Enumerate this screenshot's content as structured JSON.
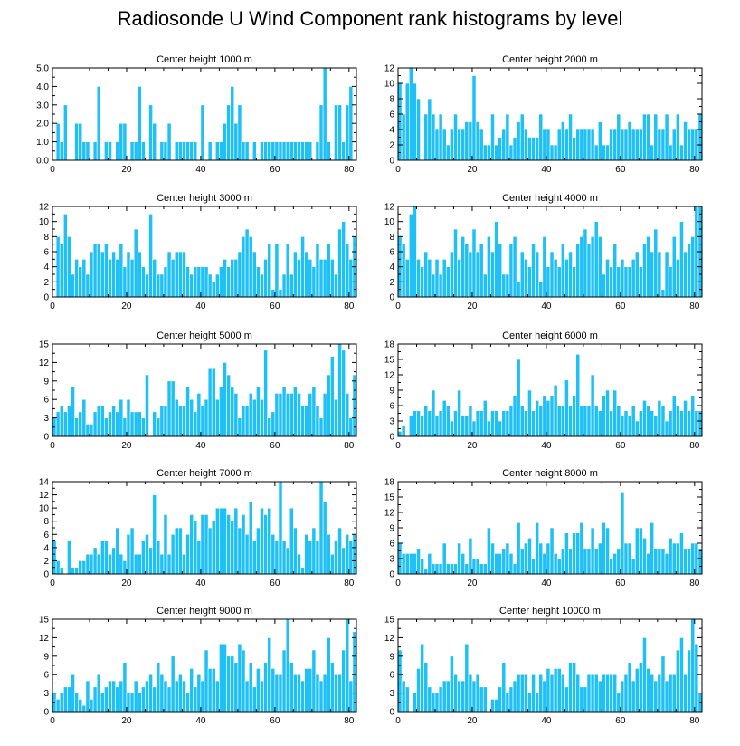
{
  "figure": {
    "title": "Radiosonde U Wind Component rank histograms by level",
    "bar_color": "#1ec0f5"
  },
  "chart_data": [
    {
      "type": "bar",
      "title": "Center height 1000 m",
      "xlim": [
        0,
        82
      ],
      "ylim": [
        0,
        5
      ],
      "yticks": [
        "0.0",
        "1.0",
        "2.0",
        "3.0",
        "4.0",
        "5.0"
      ],
      "xticks": [
        0,
        20,
        40,
        60,
        80
      ],
      "values": [
        0,
        2,
        1,
        3,
        0,
        0,
        2,
        2,
        1,
        1,
        0,
        1,
        4,
        0,
        1,
        1,
        0,
        1,
        2,
        2,
        0,
        1,
        1,
        4,
        1,
        0,
        3,
        2,
        0,
        1,
        1,
        2,
        0,
        1,
        1,
        1,
        1,
        1,
        1,
        0,
        3,
        0,
        1,
        0,
        1,
        1,
        2,
        3,
        4,
        2,
        3,
        1,
        1,
        0,
        1,
        0,
        1,
        1,
        1,
        1,
        1,
        1,
        1,
        1,
        1,
        1,
        1,
        1,
        1,
        1,
        0,
        1,
        3,
        5,
        1,
        0,
        3,
        3,
        1,
        3,
        4,
        0
      ]
    },
    {
      "type": "bar",
      "title": "Center height 2000 m",
      "xlim": [
        0,
        82
      ],
      "ylim": [
        0,
        12
      ],
      "yticks": [
        "0",
        "2",
        "4",
        "6",
        "8",
        "10",
        "12"
      ],
      "xticks": [
        0,
        20,
        40,
        60,
        80
      ],
      "values": [
        10,
        6,
        10,
        12,
        10,
        8,
        0,
        6,
        8,
        6,
        4,
        6,
        4,
        2,
        4,
        6,
        4,
        4,
        5,
        5,
        11,
        5,
        4,
        2,
        2,
        6,
        2,
        3,
        4,
        6,
        2,
        3,
        5,
        6,
        4,
        3,
        3,
        3,
        6,
        4,
        4,
        2,
        2,
        4,
        5,
        4,
        6,
        3,
        4,
        4,
        4,
        4,
        4,
        2,
        5,
        2,
        2,
        4,
        4,
        6,
        4,
        4,
        5,
        4,
        4,
        4,
        6,
        6,
        2,
        6,
        4,
        4,
        6,
        2,
        4,
        6,
        2,
        5,
        4,
        4,
        4,
        6
      ]
    },
    {
      "type": "bar",
      "title": "Center height 3000 m",
      "xlim": [
        0,
        82
      ],
      "ylim": [
        0,
        12
      ],
      "yticks": [
        "0",
        "2",
        "4",
        "6",
        "8",
        "10",
        "12"
      ],
      "xticks": [
        0,
        20,
        40,
        60,
        80
      ],
      "values": [
        0,
        8,
        7,
        11,
        8,
        3,
        5,
        4,
        5,
        3,
        6,
        7,
        7,
        6,
        7,
        5,
        6,
        5,
        7,
        4,
        6,
        5,
        9,
        6,
        4,
        3,
        11,
        5,
        3,
        3,
        4,
        6,
        5,
        6,
        6,
        6,
        4,
        3,
        4,
        4,
        4,
        4,
        3,
        2,
        3,
        4,
        5,
        4,
        5,
        5,
        6,
        8,
        9,
        8,
        6,
        4,
        3,
        5,
        7,
        1,
        7,
        1,
        3,
        7,
        3,
        6,
        5,
        8,
        6,
        5,
        4,
        7,
        5,
        5,
        7,
        5,
        3,
        9,
        10,
        7,
        5,
        8
      ]
    },
    {
      "type": "bar",
      "title": "Center height 4000 m",
      "xlim": [
        0,
        82
      ],
      "ylim": [
        0,
        12
      ],
      "yticks": [
        "0",
        "2",
        "4",
        "6",
        "8",
        "10",
        "12"
      ],
      "xticks": [
        0,
        20,
        40,
        60,
        80
      ],
      "values": [
        8,
        7,
        5,
        11,
        12,
        5,
        4,
        6,
        5,
        3,
        5,
        3,
        5,
        4,
        6,
        9,
        5,
        8,
        7,
        6,
        9,
        6,
        7,
        3,
        8,
        6,
        10,
        7,
        3,
        3,
        7,
        8,
        2,
        6,
        5,
        4,
        7,
        6,
        2,
        8,
        4,
        6,
        5,
        4,
        7,
        5,
        6,
        4,
        7,
        8,
        9,
        7,
        8,
        10,
        8,
        3,
        5,
        4,
        7,
        4,
        5,
        4,
        4,
        5,
        6,
        4,
        7,
        8,
        6,
        9,
        6,
        1,
        6,
        4,
        8,
        5,
        10,
        6,
        7,
        8,
        12,
        12
      ]
    },
    {
      "type": "bar",
      "title": "Center height 5000 m",
      "xlim": [
        0,
        82
      ],
      "ylim": [
        0,
        15
      ],
      "yticks": [
        "0",
        "3",
        "6",
        "9",
        "12",
        "15"
      ],
      "xticks": [
        0,
        20,
        40,
        60,
        80
      ],
      "values": [
        3,
        4,
        5,
        4,
        5,
        8,
        3,
        4,
        6,
        2,
        2,
        4,
        5,
        5,
        3,
        4,
        5,
        4,
        6,
        3,
        6,
        4,
        4,
        4,
        3,
        10,
        0,
        4,
        3,
        5,
        5,
        9,
        9,
        6,
        5,
        5,
        8,
        6,
        4,
        7,
        5,
        6,
        11,
        11,
        6,
        8,
        12,
        10,
        8,
        7,
        3,
        5,
        5,
        7,
        6,
        8,
        6,
        14,
        3,
        4,
        7,
        7,
        8,
        7,
        7,
        8,
        7,
        5,
        5,
        7,
        8,
        5,
        3,
        7,
        10,
        13,
        6,
        15,
        14,
        7,
        3,
        10
      ]
    },
    {
      "type": "bar",
      "title": "Center height 6000 m",
      "xlim": [
        0,
        82
      ],
      "ylim": [
        0,
        18
      ],
      "yticks": [
        "0",
        "3",
        "6",
        "9",
        "12",
        "15",
        "18"
      ],
      "xticks": [
        0,
        20,
        40,
        60,
        80
      ],
      "values": [
        1,
        2,
        0,
        4,
        5,
        5,
        4,
        6,
        5,
        9,
        4,
        5,
        7,
        6,
        3,
        5,
        9,
        4,
        4,
        6,
        3,
        5,
        5,
        7,
        3,
        5,
        5,
        3,
        5,
        5,
        6,
        8,
        15,
        6,
        5,
        9,
        5,
        7,
        6,
        8,
        7,
        8,
        10,
        6,
        6,
        11,
        6,
        8,
        16,
        6,
        6,
        6,
        12,
        6,
        5,
        8,
        9,
        5,
        9,
        6,
        4,
        5,
        4,
        6,
        3,
        5,
        7,
        6,
        5,
        4,
        7,
        6,
        3,
        5,
        8,
        6,
        5,
        7,
        5,
        8,
        5,
        5
      ]
    },
    {
      "type": "bar",
      "title": "Center height 7000 m",
      "xlim": [
        0,
        82
      ],
      "ylim": [
        0,
        14
      ],
      "yticks": [
        "0",
        "2",
        "4",
        "6",
        "8",
        "10",
        "12",
        "14"
      ],
      "xticks": [
        0,
        20,
        40,
        60,
        80
      ],
      "values": [
        5,
        2,
        1,
        0,
        5,
        1,
        1,
        2,
        2,
        3,
        3,
        4,
        3,
        5,
        5,
        3,
        4,
        7,
        3,
        2,
        6,
        7,
        3,
        3,
        5,
        6,
        4,
        12,
        5,
        3,
        9,
        3,
        6,
        7,
        7,
        3,
        6,
        9,
        8,
        5,
        9,
        9,
        7,
        8,
        10,
        10,
        10,
        9,
        8,
        10,
        7,
        9,
        6,
        11,
        5,
        7,
        10,
        9,
        10,
        6,
        5,
        14,
        5,
        4,
        10,
        7,
        3,
        1,
        6,
        5,
        7,
        5,
        14,
        11,
        6,
        3,
        5,
        7,
        4,
        6,
        5,
        6
      ]
    },
    {
      "type": "bar",
      "title": "Center height 8000 m",
      "xlim": [
        0,
        82
      ],
      "ylim": [
        0,
        18
      ],
      "yticks": [
        "0",
        "3",
        "6",
        "9",
        "12",
        "15",
        "18"
      ],
      "xticks": [
        0,
        20,
        40,
        60,
        80
      ],
      "values": [
        6,
        4,
        4,
        4,
        4,
        5,
        3,
        1,
        4,
        2,
        2,
        2,
        6,
        2,
        2,
        2,
        6,
        4,
        2,
        7,
        3,
        3,
        2,
        2,
        9,
        6,
        4,
        4,
        5,
        6,
        4,
        2,
        10,
        5,
        6,
        7,
        3,
        10,
        6,
        4,
        6,
        9,
        4,
        3,
        5,
        8,
        5,
        8,
        8,
        10,
        5,
        5,
        9,
        5,
        6,
        10,
        9,
        3,
        4,
        5,
        16,
        6,
        6,
        3,
        9,
        9,
        7,
        4,
        10,
        5,
        5,
        5,
        4,
        7,
        6,
        6,
        8,
        5,
        5,
        6,
        6,
        5
      ]
    },
    {
      "type": "bar",
      "title": "Center height 9000 m",
      "xlim": [
        0,
        82
      ],
      "ylim": [
        0,
        15
      ],
      "yticks": [
        "0",
        "3",
        "6",
        "9",
        "12",
        "15"
      ],
      "xticks": [
        0,
        20,
        40,
        60,
        80
      ],
      "values": [
        3,
        2,
        3,
        4,
        4,
        6,
        3,
        2,
        1,
        5,
        2,
        4,
        6,
        3,
        4,
        5,
        5,
        4,
        5,
        8,
        3,
        3,
        5,
        3,
        4,
        5,
        6,
        4,
        8,
        6,
        5,
        4,
        9,
        5,
        6,
        5,
        3,
        7,
        4,
        6,
        5,
        10,
        7,
        7,
        5,
        11,
        11,
        9,
        9,
        8,
        11,
        10,
        5,
        8,
        4,
        7,
        5,
        8,
        12,
        7,
        6,
        6,
        10,
        15,
        8,
        6,
        6,
        5,
        7,
        7,
        10,
        6,
        5,
        6,
        12,
        8,
        6,
        6,
        10,
        15,
        5,
        13
      ]
    },
    {
      "type": "bar",
      "title": "Center height 10000 m",
      "xlim": [
        0,
        82
      ],
      "ylim": [
        0,
        15
      ],
      "yticks": [
        "0",
        "3",
        "6",
        "9",
        "12",
        "15"
      ],
      "xticks": [
        0,
        20,
        40,
        60,
        80
      ],
      "values": [
        10,
        5,
        4,
        0,
        3,
        7,
        11,
        8,
        4,
        3,
        3,
        4,
        5,
        5,
        9,
        6,
        5,
        5,
        11,
        6,
        5,
        6,
        4,
        4,
        0,
        2,
        2,
        4,
        8,
        3,
        4,
        5,
        6,
        6,
        6,
        3,
        6,
        3,
        6,
        5,
        7,
        6,
        7,
        7,
        6,
        4,
        8,
        8,
        6,
        4,
        4,
        6,
        6,
        6,
        5,
        6,
        6,
        6,
        6,
        3,
        5,
        6,
        8,
        5,
        7,
        8,
        12,
        7,
        6,
        5,
        6,
        9,
        5,
        6,
        6,
        10,
        12,
        6,
        10,
        15,
        11,
        3
      ]
    }
  ]
}
